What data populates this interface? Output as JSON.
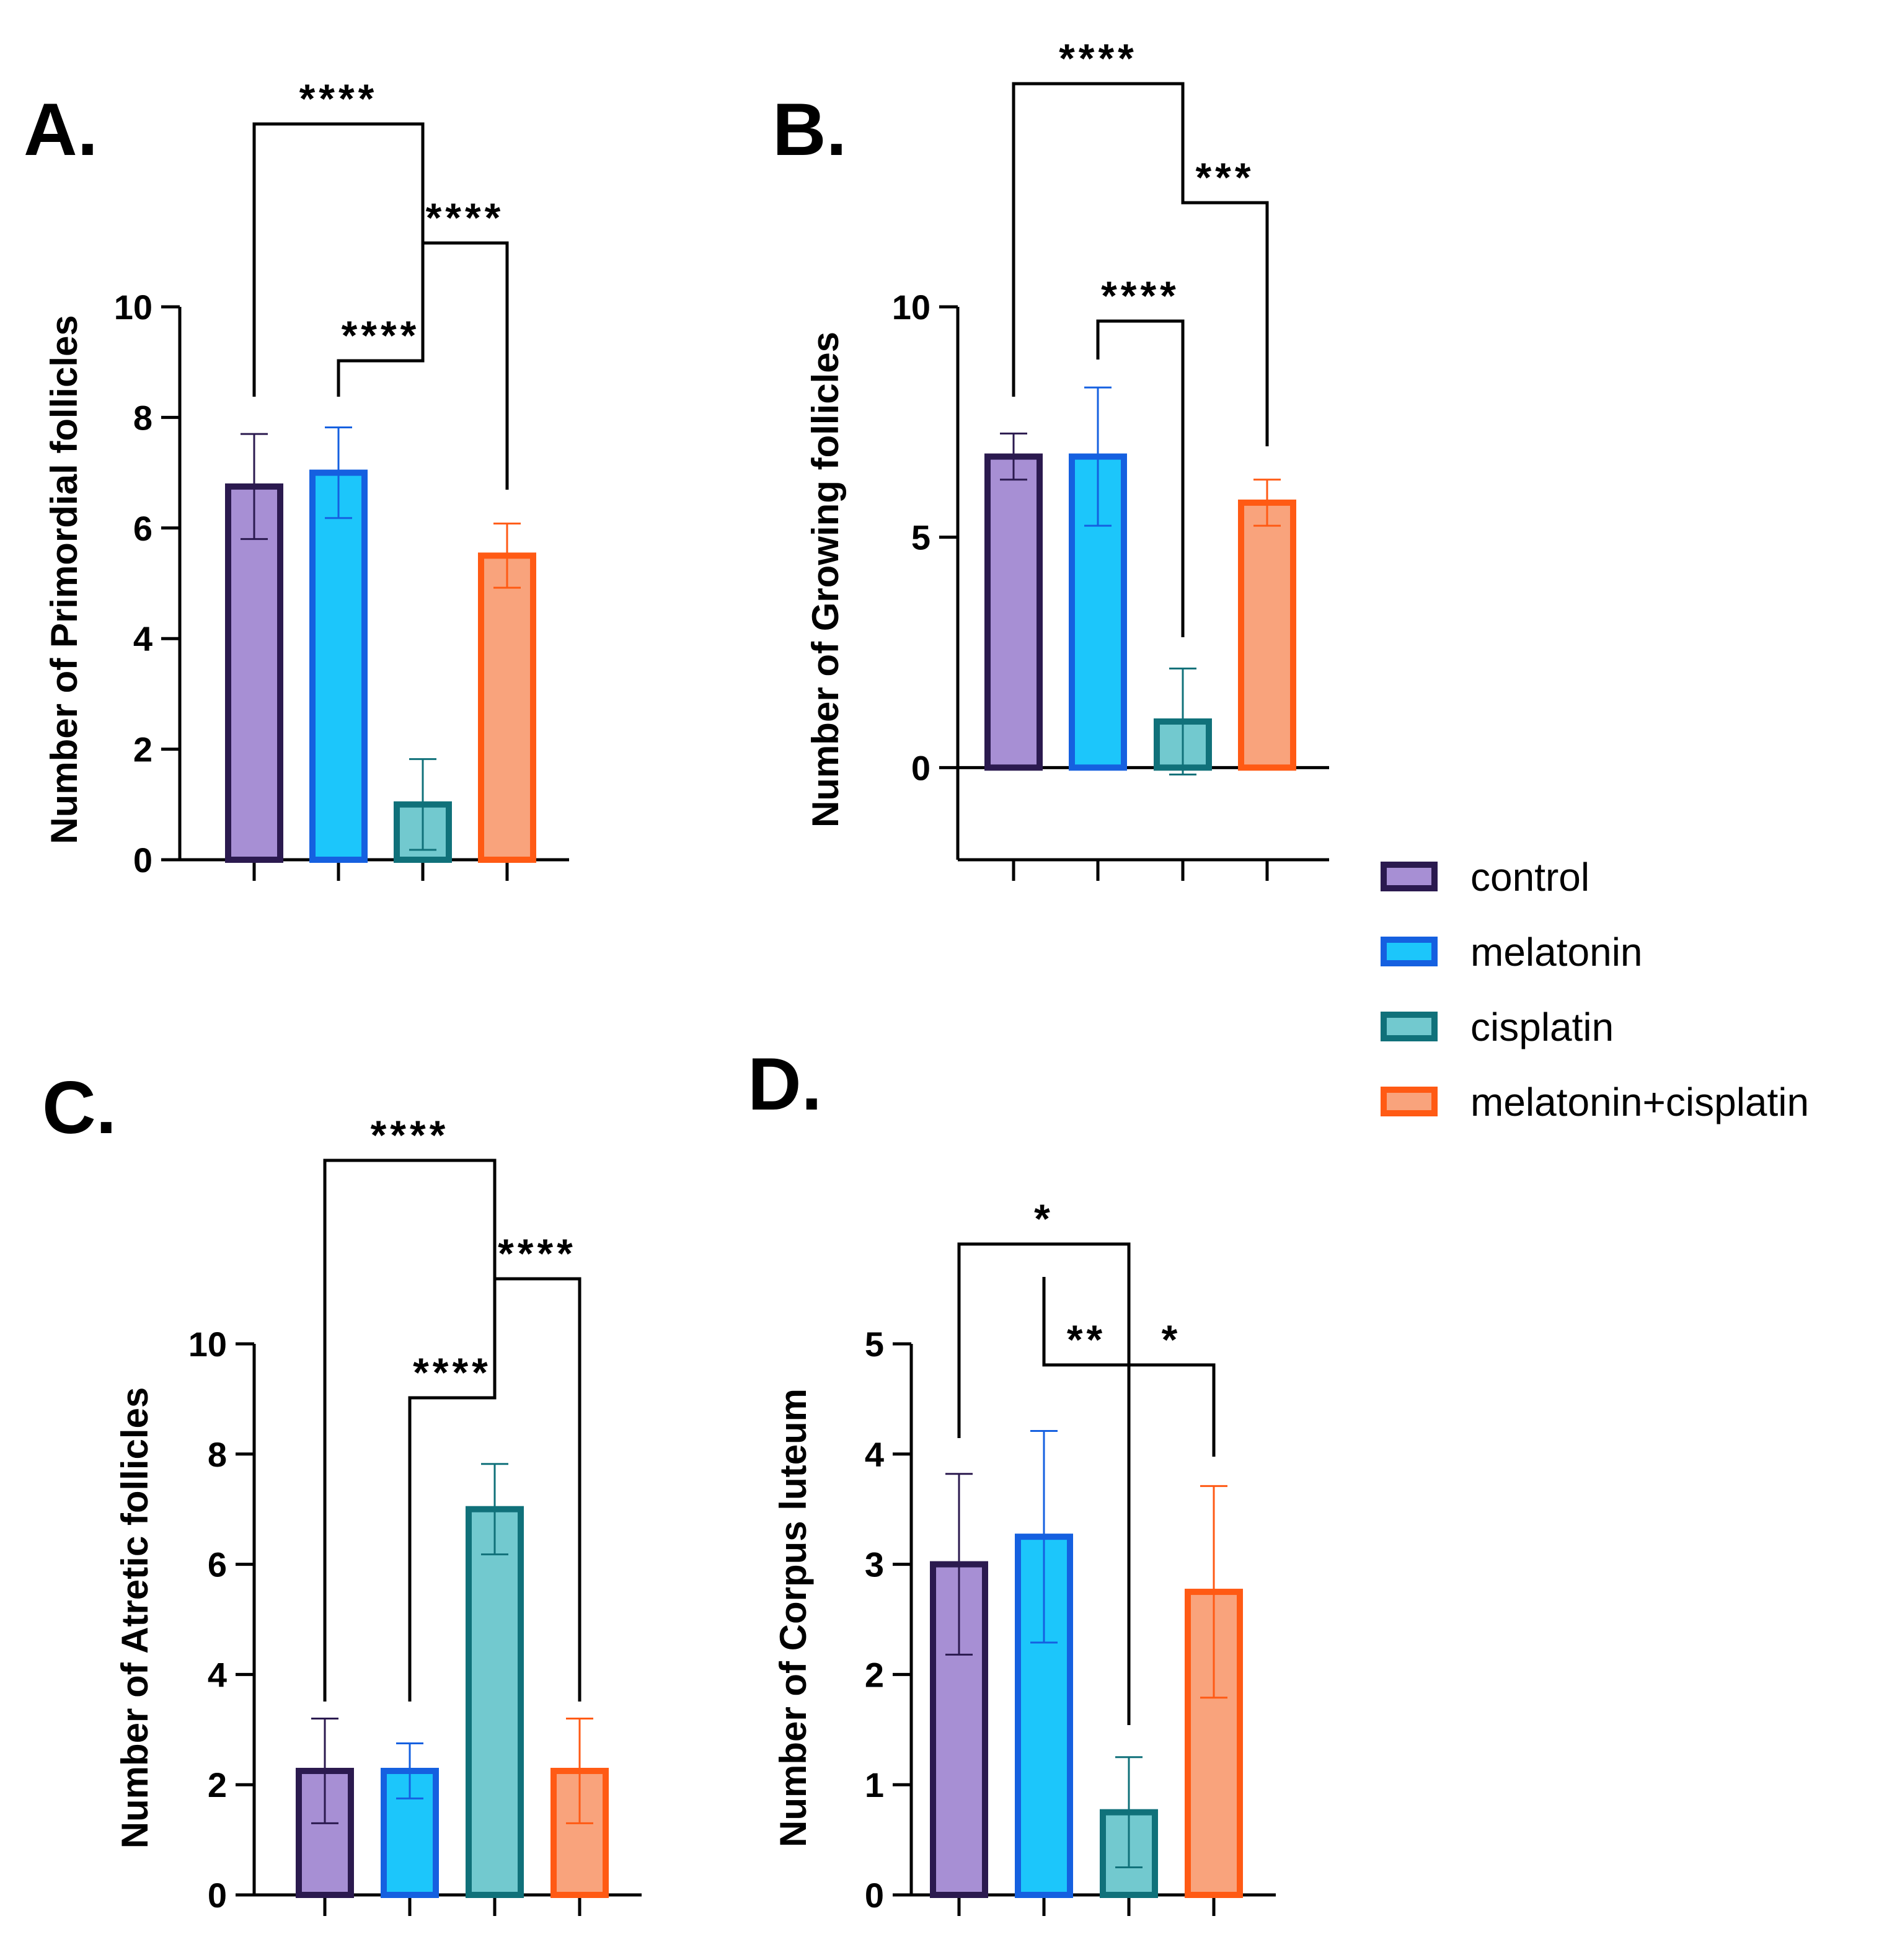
{
  "chart_data": [
    {
      "type": "bar",
      "panel": "A.",
      "title": "",
      "xlabel": "",
      "ylabel": "Number of Primordial follicles",
      "ylim": [
        0,
        10
      ],
      "yticks": [
        0,
        2,
        4,
        6,
        8,
        10
      ],
      "categories": [
        "control",
        "melatonin",
        "cisplatin",
        "melatonin+cisplatin"
      ],
      "values": [
        6.75,
        7.0,
        1.0,
        5.5
      ],
      "errors": [
        0.95,
        0.82,
        0.82,
        0.58
      ],
      "significance": [
        {
          "from": 0,
          "to": 2,
          "label": "****"
        },
        {
          "from": 2,
          "to": 3,
          "label": "****"
        },
        {
          "from": 1,
          "to": 2,
          "label": "****"
        }
      ]
    },
    {
      "type": "bar",
      "panel": "B.",
      "title": "",
      "xlabel": "",
      "ylabel": "Number of Growing follicles",
      "ylim": [
        -2,
        10
      ],
      "yticks": [
        0,
        5,
        10
      ],
      "categories": [
        "control",
        "melatonin",
        "cisplatin",
        "melatonin+cisplatin"
      ],
      "values": [
        6.75,
        6.75,
        1.0,
        5.75
      ],
      "errors": [
        0.5,
        1.5,
        1.15,
        0.5
      ],
      "significance": [
        {
          "from": 0,
          "to": 2,
          "label": "****"
        },
        {
          "from": 2,
          "to": 3,
          "label": "***"
        },
        {
          "from": 1,
          "to": 2,
          "label": "****"
        }
      ]
    },
    {
      "type": "bar",
      "panel": "C.",
      "title": "",
      "xlabel": "",
      "ylabel": "Number of Atretic follicles",
      "ylim": [
        0,
        10
      ],
      "yticks": [
        0,
        2,
        4,
        6,
        8,
        10
      ],
      "categories": [
        "control",
        "melatonin",
        "cisplatin",
        "melatonin+cisplatin"
      ],
      "values": [
        2.25,
        2.25,
        7.0,
        2.25
      ],
      "errors": [
        0.95,
        0.5,
        0.82,
        0.95
      ],
      "significance": [
        {
          "from": 0,
          "to": 2,
          "label": "****"
        },
        {
          "from": 2,
          "to": 3,
          "label": "****"
        },
        {
          "from": 1,
          "to": 2,
          "label": "****"
        }
      ]
    },
    {
      "type": "bar",
      "panel": "D.",
      "title": "",
      "xlabel": "",
      "ylabel": "Number of Corpus luteum",
      "ylim": [
        0,
        5
      ],
      "yticks": [
        0,
        1,
        2,
        3,
        4,
        5
      ],
      "categories": [
        "control",
        "melatonin",
        "cisplatin",
        "melatonin+cisplatin"
      ],
      "values": [
        3.0,
        3.25,
        0.75,
        2.75
      ],
      "errors": [
        0.82,
        0.96,
        0.5,
        0.96
      ],
      "significance": [
        {
          "from": 0,
          "to": 2,
          "label": "*"
        },
        {
          "from": 1,
          "to": 2,
          "label": "**"
        },
        {
          "from": 2,
          "to": 3,
          "label": "*"
        }
      ]
    }
  ],
  "legend": {
    "placement": "right",
    "items": [
      {
        "label": "control",
        "fill": "#a78fd4",
        "stroke": "#2b1a4f"
      },
      {
        "label": "melatonin",
        "fill": "#1cc6fb",
        "stroke": "#1560e0"
      },
      {
        "label": "cisplatin",
        "fill": "#72c9cf",
        "stroke": "#10717a"
      },
      {
        "label": "melatonin+cisplatin",
        "fill": "#f9a37c",
        "stroke": "#ff5a14"
      }
    ]
  }
}
